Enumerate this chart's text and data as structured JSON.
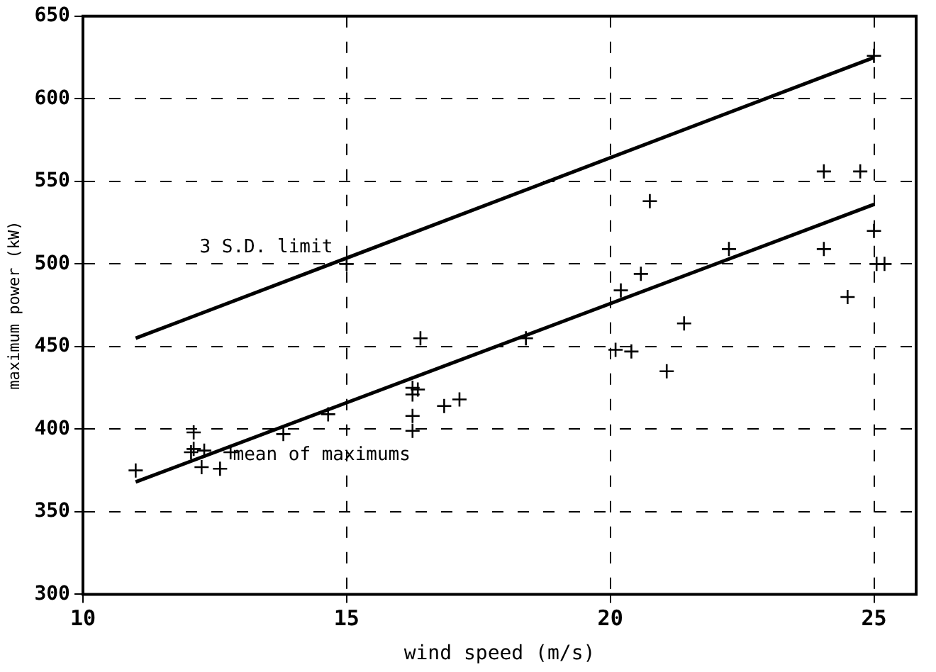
{
  "chart_data": {
    "type": "scatter",
    "xlabel": "wind speed (m/s)",
    "ylabel": "maximum power (kW)",
    "xlim": [
      10,
      25.8
    ],
    "xticks": [
      10,
      15,
      20,
      25
    ],
    "ylim": [
      300,
      650
    ],
    "yticks": [
      300,
      350,
      400,
      450,
      500,
      550,
      600,
      650
    ],
    "grid": true,
    "series": [
      {
        "color": "#000000",
        "marker": "cross",
        "x": [
          11.0,
          12.1,
          12.1,
          12.05,
          12.3,
          12.25,
          12.6,
          12.8,
          13.8,
          14.65,
          15.0,
          16.25,
          16.35,
          16.25,
          16.25,
          16.25,
          16.4,
          16.85,
          17.14,
          18.4,
          20.1,
          20.4,
          20.2,
          20.58,
          20.75,
          21.07,
          21.4,
          22.25,
          24.05,
          24.05,
          24.74,
          24.5,
          25.0,
          25.05,
          25.2,
          25.0
        ],
        "values": [
          375,
          398,
          388,
          386,
          387,
          377,
          376,
          386,
          397,
          409,
          500,
          425,
          424,
          421,
          408,
          399,
          455,
          414,
          418,
          455,
          448,
          447,
          484,
          494,
          538,
          435,
          464,
          509,
          509,
          556,
          556,
          480,
          520,
          500,
          500,
          626
        ]
      },
      {
        "type": "line",
        "color": "#000000",
        "line_style": "solid",
        "marker": "none",
        "x": [
          11,
          25
        ],
        "values": [
          368,
          536
        ]
      },
      {
        "type": "line",
        "color": "#000000",
        "line_style": "solid",
        "marker": "none",
        "x": [
          11,
          25
        ],
        "values": [
          455,
          625
        ]
      }
    ],
    "annotations": [
      "3 S.D. limit",
      "mean of maximums"
    ]
  }
}
